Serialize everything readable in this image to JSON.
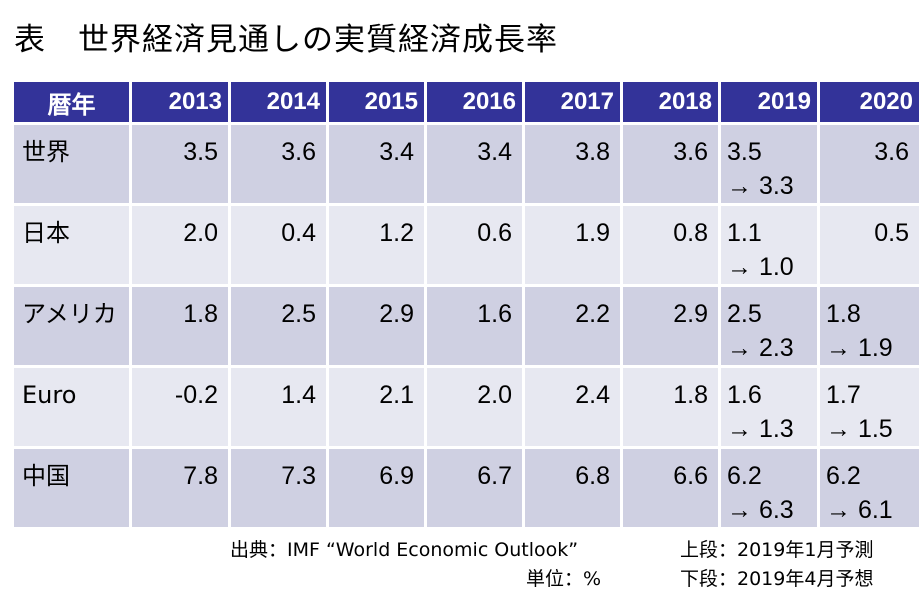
{
  "title": "表　世界経済見通しの実質経済成長率",
  "header": {
    "label": "暦年",
    "years": [
      "2013",
      "2014",
      "2015",
      "2016",
      "2017",
      "2018",
      "2019",
      "2020"
    ]
  },
  "rows": [
    {
      "label": "世界",
      "values": [
        "3.5",
        "3.6",
        "3.4",
        "3.4",
        "3.8",
        "3.6"
      ],
      "y2019": [
        "3.5",
        "→ 3.3"
      ],
      "y2020": [
        "3.6"
      ]
    },
    {
      "label": "日本",
      "values": [
        "2.0",
        "0.4",
        "1.2",
        "0.6",
        "1.9",
        "0.8"
      ],
      "y2019": [
        "1.1",
        "→ 1.0"
      ],
      "y2020": [
        "0.5"
      ]
    },
    {
      "label": "アメリカ",
      "values": [
        "1.8",
        "2.5",
        "2.9",
        "1.6",
        "2.2",
        "2.9"
      ],
      "y2019": [
        "2.5",
        "→ 2.3"
      ],
      "y2020": [
        "1.8",
        "→ 1.9"
      ]
    },
    {
      "label": "Euro",
      "values": [
        "-0.2",
        "1.4",
        "2.1",
        "2.0",
        "2.4",
        "1.8"
      ],
      "y2019": [
        "1.6",
        "→ 1.3"
      ],
      "y2020": [
        "1.7",
        "→ 1.5"
      ]
    },
    {
      "label": "中国",
      "values": [
        "7.8",
        "7.3",
        "6.9",
        "6.7",
        "6.8",
        "6.6"
      ],
      "y2019": [
        "6.2",
        "→ 6.3"
      ],
      "y2020": [
        "6.2",
        "→ 6.1"
      ]
    }
  ],
  "notes": {
    "source": "出典：IMF “World Economic Outlook”",
    "unit": "単位：%",
    "upper": "上段：2019年1月予測",
    "lower": "下段：2019年4月予想"
  }
}
